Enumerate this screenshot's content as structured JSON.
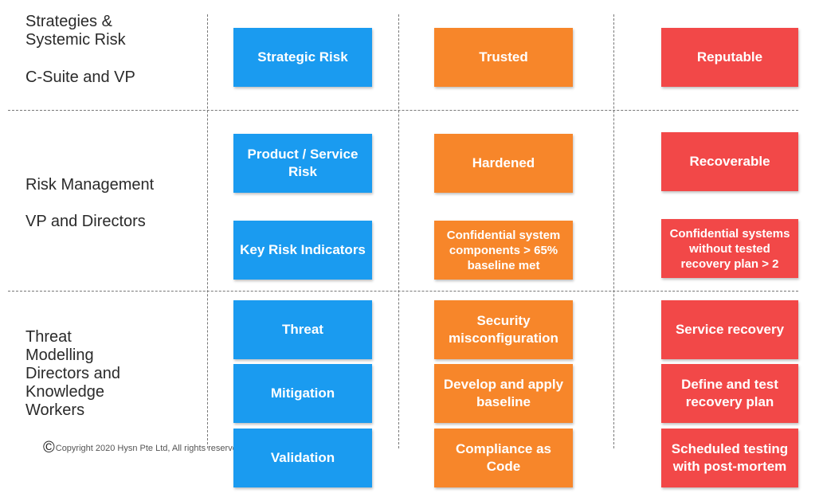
{
  "tiers": [
    {
      "label": "Strategies & Systemic Risk",
      "role": "C-Suite and VP"
    },
    {
      "label": "Risk Management",
      "role": "VP and Directors"
    },
    {
      "label": "Threat Modelling",
      "role": "Directors and Knowledge Workers"
    }
  ],
  "grid": {
    "rows": [
      [
        "Strategic Risk",
        "Trusted",
        "Reputable"
      ],
      [
        "Product / Service Risk",
        "Hardened",
        "Recoverable"
      ],
      [
        "Key Risk Indicators",
        "Confidential system components > 65% baseline met",
        "Confidential systems without tested recovery plan > 2"
      ],
      [
        "Threat",
        "Security misconfiguration",
        "Service recovery"
      ],
      [
        "Mitigation",
        "Develop and apply baseline",
        "Define and test recovery plan"
      ],
      [
        "Validation",
        "Compliance as Code",
        "Scheduled testing with post-mortem"
      ]
    ]
  },
  "footer": {
    "symbol": "©",
    "text": "Copyright 2020 Hysn Pte Ltd, All rights reserve"
  }
}
